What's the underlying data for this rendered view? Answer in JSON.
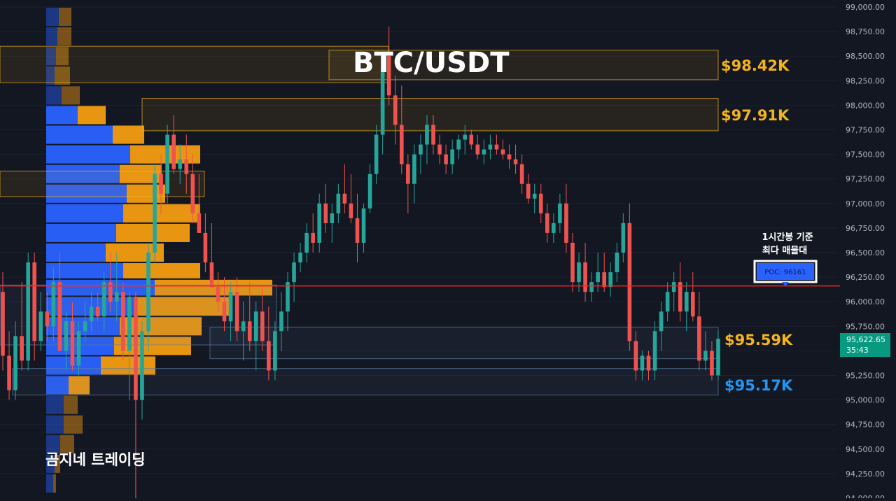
{
  "title": "BTC/USDT",
  "watermark": "곰지네 트레이딩",
  "poc": {
    "note_line1": "1시간봉 기준",
    "note_line2": "최다 매물대",
    "label": "POC: 96161",
    "price": 96161
  },
  "price_axis": {
    "ticks": [
      "99,000.00",
      "98,750.00",
      "98,500.00",
      "98,250.00",
      "98,000.00",
      "97,750.00",
      "97,500.00",
      "97,250.00",
      "97,000.00",
      "96,750.00",
      "96,500.00",
      "96,250.00",
      "96,000.00",
      "95,750.00",
      "95,500.00",
      "95,250.00",
      "95,000.00",
      "94,750.00",
      "94,500.00",
      "94,250.00",
      "94,000.00"
    ],
    "current_price": "95,622.65",
    "countdown": "35:43"
  },
  "levels": [
    {
      "label": "$98.42K",
      "price": 98420,
      "color": "#f5b31b"
    },
    {
      "label": "$97.91K",
      "price": 97910,
      "color": "#f5b31b"
    },
    {
      "label": "$95.59K",
      "price": 95590,
      "color": "#f5b31b"
    },
    {
      "label": "$95.17K",
      "price": 95170,
      "color": "#2196f3"
    }
  ],
  "colors": {
    "up": "#26a69a",
    "down": "#ef5350",
    "poc_line": "#ff1e1e",
    "profile_buy": "#2962ff",
    "profile_sell": "#f39c12",
    "level_gold": "#f5b31b",
    "level_blue": "#2196f3"
  },
  "chart_data": {
    "type": "candlestick",
    "ylim": [
      94000,
      99000
    ],
    "y_ticks": [
      99000,
      98750,
      98500,
      98250,
      98000,
      97750,
      97500,
      97250,
      97000,
      96750,
      96500,
      96250,
      96000,
      95750,
      95500,
      95250,
      95000,
      94750,
      94500,
      94250,
      94000
    ],
    "candles": [
      {
        "o": 96100,
        "h": 96300,
        "l": 95300,
        "c": 95450
      },
      {
        "o": 95450,
        "h": 95700,
        "l": 95000,
        "c": 95100
      },
      {
        "o": 95100,
        "h": 95800,
        "l": 95000,
        "c": 95650
      },
      {
        "o": 95650,
        "h": 96200,
        "l": 95300,
        "c": 95400
      },
      {
        "o": 95400,
        "h": 96500,
        "l": 95300,
        "c": 96400
      },
      {
        "o": 96400,
        "h": 96500,
        "l": 95400,
        "c": 95600
      },
      {
        "o": 95600,
        "h": 96100,
        "l": 95500,
        "c": 95900
      },
      {
        "o": 95900,
        "h": 96100,
        "l": 95600,
        "c": 95750
      },
      {
        "o": 95750,
        "h": 96350,
        "l": 95600,
        "c": 96200
      },
      {
        "o": 96200,
        "h": 96500,
        "l": 95500,
        "c": 95500
      },
      {
        "o": 95500,
        "h": 95900,
        "l": 95300,
        "c": 95800
      },
      {
        "o": 95800,
        "h": 96000,
        "l": 95300,
        "c": 95350
      },
      {
        "o": 95350,
        "h": 95800,
        "l": 95250,
        "c": 95700
      },
      {
        "o": 95700,
        "h": 96000,
        "l": 95600,
        "c": 95800
      },
      {
        "o": 95800,
        "h": 96100,
        "l": 95700,
        "c": 95950
      },
      {
        "o": 95950,
        "h": 96100,
        "l": 95800,
        "c": 95850
      },
      {
        "o": 95850,
        "h": 96300,
        "l": 95700,
        "c": 96200
      },
      {
        "o": 96200,
        "h": 96500,
        "l": 95900,
        "c": 96000
      },
      {
        "o": 96000,
        "h": 96500,
        "l": 95800,
        "c": 96100
      },
      {
        "o": 96100,
        "h": 96200,
        "l": 95400,
        "c": 95500
      },
      {
        "o": 95500,
        "h": 96100,
        "l": 95000,
        "c": 96050
      },
      {
        "o": 96050,
        "h": 96100,
        "l": 94000,
        "c": 95000
      },
      {
        "o": 95000,
        "h": 95800,
        "l": 94800,
        "c": 95700
      },
      {
        "o": 95700,
        "h": 96600,
        "l": 95500,
        "c": 96500
      },
      {
        "o": 96500,
        "h": 97400,
        "l": 96400,
        "c": 97300
      },
      {
        "o": 97300,
        "h": 97500,
        "l": 96900,
        "c": 97100
      },
      {
        "o": 97100,
        "h": 97800,
        "l": 97000,
        "c": 97700
      },
      {
        "o": 97700,
        "h": 97900,
        "l": 97300,
        "c": 97350
      },
      {
        "o": 97350,
        "h": 97600,
        "l": 97200,
        "c": 97450
      },
      {
        "o": 97450,
        "h": 97700,
        "l": 97100,
        "c": 97300
      },
      {
        "o": 97300,
        "h": 97500,
        "l": 96800,
        "c": 96900
      },
      {
        "o": 96900,
        "h": 97300,
        "l": 96700,
        "c": 96700
      },
      {
        "o": 96700,
        "h": 96900,
        "l": 96300,
        "c": 96400
      },
      {
        "o": 96400,
        "h": 96800,
        "l": 96200,
        "c": 96150
      },
      {
        "o": 96150,
        "h": 96300,
        "l": 95900,
        "c": 96000
      },
      {
        "o": 96000,
        "h": 96250,
        "l": 95700,
        "c": 95800
      },
      {
        "o": 95800,
        "h": 96200,
        "l": 95600,
        "c": 96100
      },
      {
        "o": 96100,
        "h": 96250,
        "l": 95600,
        "c": 95700
      },
      {
        "o": 95700,
        "h": 96000,
        "l": 95400,
        "c": 95800
      },
      {
        "o": 95800,
        "h": 96200,
        "l": 95500,
        "c": 95600
      },
      {
        "o": 95600,
        "h": 96000,
        "l": 95300,
        "c": 95900
      },
      {
        "o": 95900,
        "h": 96150,
        "l": 95500,
        "c": 95600
      },
      {
        "o": 95600,
        "h": 95950,
        "l": 95200,
        "c": 95300
      },
      {
        "o": 95300,
        "h": 95800,
        "l": 95200,
        "c": 95700
      },
      {
        "o": 95700,
        "h": 96100,
        "l": 95500,
        "c": 95900
      },
      {
        "o": 95900,
        "h": 96300,
        "l": 95700,
        "c": 96200
      },
      {
        "o": 96200,
        "h": 96500,
        "l": 96000,
        "c": 96400
      },
      {
        "o": 96400,
        "h": 96600,
        "l": 96300,
        "c": 96500
      },
      {
        "o": 96500,
        "h": 96800,
        "l": 96400,
        "c": 96700
      },
      {
        "o": 96700,
        "h": 96900,
        "l": 96500,
        "c": 96600
      },
      {
        "o": 96600,
        "h": 97100,
        "l": 96500,
        "c": 97000
      },
      {
        "o": 97000,
        "h": 97200,
        "l": 96700,
        "c": 96800
      },
      {
        "o": 96800,
        "h": 97000,
        "l": 96600,
        "c": 96900
      },
      {
        "o": 96900,
        "h": 97200,
        "l": 96800,
        "c": 97100
      },
      {
        "o": 97100,
        "h": 97400,
        "l": 96900,
        "c": 97000
      },
      {
        "o": 97000,
        "h": 97300,
        "l": 96800,
        "c": 96850
      },
      {
        "o": 96850,
        "h": 97100,
        "l": 96400,
        "c": 96600
      },
      {
        "o": 96600,
        "h": 97000,
        "l": 96500,
        "c": 96950
      },
      {
        "o": 96950,
        "h": 97400,
        "l": 96900,
        "c": 97300
      },
      {
        "o": 97300,
        "h": 97800,
        "l": 97200,
        "c": 97700
      },
      {
        "o": 97700,
        "h": 98500,
        "l": 97500,
        "c": 98500
      },
      {
        "o": 98500,
        "h": 98800,
        "l": 98000,
        "c": 98100
      },
      {
        "o": 98100,
        "h": 98300,
        "l": 97600,
        "c": 97800
      },
      {
        "o": 97800,
        "h": 98200,
        "l": 97300,
        "c": 97400
      },
      {
        "o": 97400,
        "h": 97500,
        "l": 96900,
        "c": 97200
      },
      {
        "o": 97200,
        "h": 97600,
        "l": 97000,
        "c": 97500
      },
      {
        "o": 97500,
        "h": 97700,
        "l": 97300,
        "c": 97600
      },
      {
        "o": 97600,
        "h": 97900,
        "l": 97400,
        "c": 97800
      },
      {
        "o": 97800,
        "h": 97900,
        "l": 97500,
        "c": 97600
      },
      {
        "o": 97600,
        "h": 97700,
        "l": 97400,
        "c": 97500
      },
      {
        "o": 97500,
        "h": 97600,
        "l": 97300,
        "c": 97400
      },
      {
        "o": 97400,
        "h": 97650,
        "l": 97300,
        "c": 97550
      },
      {
        "o": 97550,
        "h": 97700,
        "l": 97450,
        "c": 97650
      },
      {
        "o": 97650,
        "h": 97800,
        "l": 97500,
        "c": 97700
      },
      {
        "o": 97700,
        "h": 97750,
        "l": 97550,
        "c": 97600
      },
      {
        "o": 97600,
        "h": 97700,
        "l": 97450,
        "c": 97500
      },
      {
        "o": 97500,
        "h": 97650,
        "l": 97400,
        "c": 97550
      },
      {
        "o": 97550,
        "h": 97700,
        "l": 97450,
        "c": 97600
      },
      {
        "o": 97600,
        "h": 97700,
        "l": 97500,
        "c": 97550
      },
      {
        "o": 97550,
        "h": 97650,
        "l": 97450,
        "c": 97500
      },
      {
        "o": 97500,
        "h": 97600,
        "l": 97350,
        "c": 97450
      },
      {
        "o": 97450,
        "h": 97600,
        "l": 97300,
        "c": 97400
      },
      {
        "o": 97400,
        "h": 97500,
        "l": 97100,
        "c": 97200
      },
      {
        "o": 97200,
        "h": 97300,
        "l": 97000,
        "c": 97050
      },
      {
        "o": 97050,
        "h": 97200,
        "l": 96900,
        "c": 97100
      },
      {
        "o": 97100,
        "h": 97200,
        "l": 96800,
        "c": 96900
      },
      {
        "o": 96900,
        "h": 97000,
        "l": 96600,
        "c": 96700
      },
      {
        "o": 96700,
        "h": 96900,
        "l": 96600,
        "c": 96800
      },
      {
        "o": 96800,
        "h": 97100,
        "l": 96700,
        "c": 97000
      },
      {
        "o": 97000,
        "h": 97200,
        "l": 96500,
        "c": 96600
      },
      {
        "o": 96600,
        "h": 96700,
        "l": 96100,
        "c": 96200
      },
      {
        "o": 96200,
        "h": 96500,
        "l": 96100,
        "c": 96400
      },
      {
        "o": 96400,
        "h": 96600,
        "l": 96000,
        "c": 96100
      },
      {
        "o": 96100,
        "h": 96300,
        "l": 96000,
        "c": 96200
      },
      {
        "o": 96200,
        "h": 96500,
        "l": 96100,
        "c": 96300
      },
      {
        "o": 96300,
        "h": 96500,
        "l": 96100,
        "c": 96150
      },
      {
        "o": 96150,
        "h": 96400,
        "l": 96050,
        "c": 96300
      },
      {
        "o": 96300,
        "h": 96600,
        "l": 96200,
        "c": 96500
      },
      {
        "o": 96500,
        "h": 96900,
        "l": 96400,
        "c": 96800
      },
      {
        "o": 96800,
        "h": 97000,
        "l": 95500,
        "c": 95600
      },
      {
        "o": 95600,
        "h": 95700,
        "l": 95200,
        "c": 95300
      },
      {
        "o": 95300,
        "h": 95500,
        "l": 95200,
        "c": 95450
      },
      {
        "o": 95450,
        "h": 95500,
        "l": 95200,
        "c": 95300
      },
      {
        "o": 95300,
        "h": 95800,
        "l": 95200,
        "c": 95700
      },
      {
        "o": 95700,
        "h": 96000,
        "l": 95500,
        "c": 95900
      },
      {
        "o": 95900,
        "h": 96200,
        "l": 95800,
        "c": 96100
      },
      {
        "o": 96100,
        "h": 96300,
        "l": 95900,
        "c": 96200
      },
      {
        "o": 96200,
        "h": 96400,
        "l": 95800,
        "c": 95900
      },
      {
        "o": 95900,
        "h": 96200,
        "l": 95700,
        "c": 96100
      },
      {
        "o": 96100,
        "h": 96300,
        "l": 95800,
        "c": 95850
      },
      {
        "o": 95850,
        "h": 96100,
        "l": 95300,
        "c": 95400
      },
      {
        "o": 95400,
        "h": 95700,
        "l": 95300,
        "c": 95500
      },
      {
        "o": 95500,
        "h": 95600,
        "l": 95200,
        "c": 95250
      },
      {
        "o": 95250,
        "h": 95700,
        "l": 95200,
        "c": 95623
      }
    ],
    "volume_profile": [
      {
        "price": 98900,
        "buy": 18,
        "sell": 18
      },
      {
        "price": 98700,
        "buy": 16,
        "sell": 20
      },
      {
        "price": 98500,
        "buy": 14,
        "sell": 18
      },
      {
        "price": 98300,
        "buy": 12,
        "sell": 22
      },
      {
        "price": 98100,
        "buy": 22,
        "sell": 26
      },
      {
        "price": 97900,
        "buy": 45,
        "sell": 40
      },
      {
        "price": 97700,
        "buy": 95,
        "sell": 45
      },
      {
        "price": 97500,
        "buy": 120,
        "sell": 100
      },
      {
        "price": 97300,
        "buy": 105,
        "sell": 60
      },
      {
        "price": 97100,
        "buy": 115,
        "sell": 55
      },
      {
        "price": 96900,
        "buy": 110,
        "sell": 110
      },
      {
        "price": 96700,
        "buy": 100,
        "sell": 105
      },
      {
        "price": 96500,
        "buy": 85,
        "sell": 83
      },
      {
        "price": 96300,
        "buy": 110,
        "sell": 110
      },
      {
        "price": 96161,
        "buy": 155,
        "sell": 168
      },
      {
        "price": 95950,
        "buy": 130,
        "sell": 135
      },
      {
        "price": 95750,
        "buy": 105,
        "sell": 117
      },
      {
        "price": 95550,
        "buy": 97,
        "sell": 110
      },
      {
        "price": 95350,
        "buy": 78,
        "sell": 78
      },
      {
        "price": 95150,
        "buy": 32,
        "sell": 30
      },
      {
        "price": 94950,
        "buy": 25,
        "sell": 20
      },
      {
        "price": 94750,
        "buy": 25,
        "sell": 27
      },
      {
        "price": 94550,
        "buy": 20,
        "sell": 20
      },
      {
        "price": 94350,
        "buy": 12,
        "sell": 8
      },
      {
        "price": 94150,
        "buy": 10,
        "sell": 4
      }
    ]
  }
}
